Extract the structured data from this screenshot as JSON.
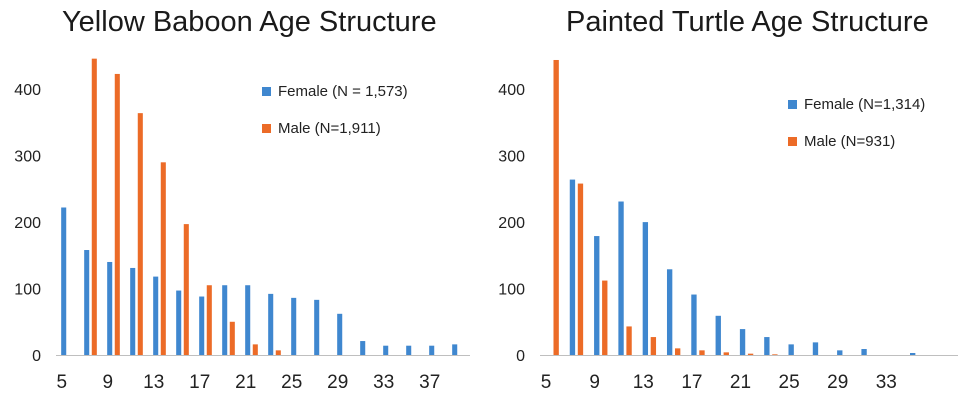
{
  "colors": {
    "female": "#3f87cf",
    "male": "#ec6b27",
    "axis": "#bfbfbf"
  },
  "chart_data": [
    {
      "type": "bar",
      "title": "Yellow Baboon Age Structure",
      "x": [
        5,
        7,
        9,
        11,
        13,
        15,
        17,
        19,
        21,
        23,
        25,
        27,
        29,
        31,
        33,
        35,
        37,
        39
      ],
      "xticks": [
        5,
        9,
        13,
        17,
        21,
        25,
        29,
        33,
        37
      ],
      "yticks": [
        0,
        100,
        200,
        300,
        400
      ],
      "ylim": [
        0,
        450
      ],
      "legend_position": "top-right",
      "series": [
        {
          "name": "Female (N = 1,573)",
          "color": "#3f87cf",
          "values": [
            222,
            158,
            140,
            131,
            118,
            97,
            88,
            105,
            105,
            92,
            86,
            83,
            62,
            21,
            14,
            14,
            14,
            16
          ]
        },
        {
          "name": "Male (N=1,911)",
          "color": "#ec6b27",
          "values": [
            0,
            446,
            423,
            364,
            290,
            197,
            105,
            50,
            16,
            7,
            0,
            0,
            0,
            0,
            0,
            0,
            0,
            0
          ]
        }
      ]
    },
    {
      "type": "bar",
      "title": "Painted Turtle Age Structure",
      "x": [
        5,
        7,
        9,
        11,
        13,
        15,
        17,
        19,
        21,
        23,
        25,
        27,
        29,
        31,
        33,
        35
      ],
      "xticks": [
        5,
        9,
        13,
        17,
        21,
        25,
        29,
        33
      ],
      "yticks": [
        0,
        100,
        200,
        300,
        400
      ],
      "ylim": [
        0,
        450
      ],
      "legend_position": "top-right",
      "series": [
        {
          "name": "Female (N=1,314)",
          "color": "#3f87cf",
          "values": [
            0,
            264,
            179,
            231,
            200,
            129,
            91,
            59,
            39,
            27,
            16,
            19,
            7,
            9,
            0,
            3
          ]
        },
        {
          "name": "Male (N=931)",
          "color": "#ec6b27",
          "values": [
            444,
            258,
            112,
            43,
            27,
            10,
            7,
            4,
            2,
            1,
            0,
            0,
            0,
            0,
            0,
            0
          ]
        }
      ]
    }
  ]
}
